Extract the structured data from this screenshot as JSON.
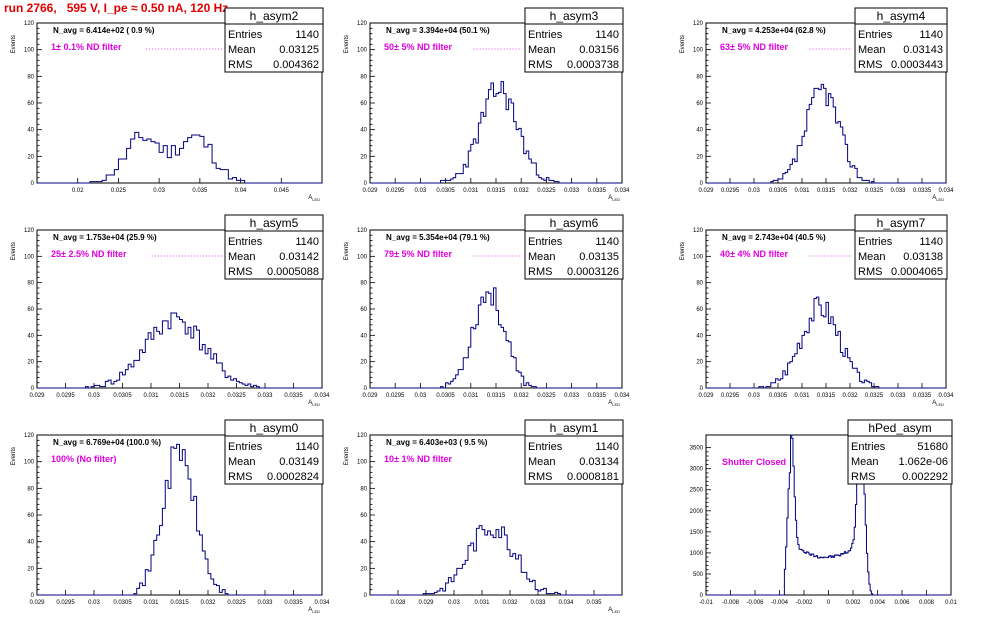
{
  "page": {
    "title": "run 2766,   595 V, I_pe ≈ 0.50 nA, 120 Hz",
    "stats_labels": {
      "entries": "Entries",
      "mean": "Mean",
      "rms": "RMS"
    },
    "colors": {
      "title": "#e00000",
      "filter_text": "#e000e0",
      "histogram_line": "#000080"
    }
  },
  "chart_data": [
    {
      "type": "bar",
      "name": "h_asym2",
      "stats": {
        "entries": "1140",
        "mean": "0.03125",
        "rms": "0.004362"
      },
      "n_avg": "N_avg = 6.414e+02 ( 0.9 %)",
      "filter": "1± 0.1% ND filter",
      "ylabel": "Events",
      "xlabel": "A_LED",
      "xlim": [
        0.015,
        0.05
      ],
      "ylim": [
        0,
        120
      ],
      "xticks": [
        0.02,
        0.025,
        0.03,
        0.035,
        0.04,
        0.045
      ],
      "xtick_labels": [
        "0.02",
        "0.025",
        "0.03",
        "0.035",
        "0.04",
        "0.045"
      ],
      "yticks": [
        0,
        20,
        40,
        60,
        80,
        100,
        120
      ],
      "dist": {
        "type": "bimodal",
        "mean": 0.03125,
        "rms": 0.004362,
        "peak": 36,
        "seed": 11
      },
      "bin_width": 0.0005
    },
    {
      "type": "bar",
      "name": "h_asym3",
      "stats": {
        "entries": "1140",
        "mean": "0.03156",
        "rms": "0.0003738"
      },
      "n_avg": "N_avg = 3.394e+04 (50.1 %)",
      "filter": "50± 5% ND filter",
      "ylabel": "Events",
      "xlabel": "A_LED",
      "xlim": [
        0.029,
        0.034
      ],
      "ylim": [
        0,
        120
      ],
      "xticks": [
        0.029,
        0.0295,
        0.03,
        0.0305,
        0.031,
        0.0315,
        0.032,
        0.0325,
        0.033,
        0.0335,
        0.034
      ],
      "xtick_labels": [
        "0.029",
        "0.0295",
        "0.03",
        "0.0305",
        "0.031",
        "0.0315",
        "0.032",
        "0.0325",
        "0.033",
        "0.0335",
        "0.034"
      ],
      "yticks": [
        0,
        20,
        40,
        60,
        80,
        100,
        120
      ],
      "dist": {
        "type": "gauss",
        "mean": 0.03156,
        "rms": 0.0003738,
        "peak": 70,
        "seed": 23
      },
      "bin_width": 5e-05
    },
    {
      "type": "bar",
      "name": "h_asym4",
      "stats": {
        "entries": "1140",
        "mean": "0.03143",
        "rms": "0.0003443"
      },
      "n_avg": "N_avg = 4.253e+04 (62.8 %)",
      "filter": "63± 5% ND filter",
      "ylabel": "Events",
      "xlabel": "A_LED",
      "xlim": [
        0.029,
        0.034
      ],
      "ylim": [
        0,
        120
      ],
      "xticks": [
        0.029,
        0.0295,
        0.03,
        0.0305,
        0.031,
        0.0315,
        0.032,
        0.0325,
        0.033,
        0.0335,
        0.034
      ],
      "xtick_labels": [
        "0.029",
        "0.0295",
        "0.03",
        "0.0305",
        "0.031",
        "0.0315",
        "0.032",
        "0.0325",
        "0.033",
        "0.0335",
        "0.034"
      ],
      "yticks": [
        0,
        20,
        40,
        60,
        80,
        100,
        120
      ],
      "dist": {
        "type": "gauss",
        "mean": 0.03143,
        "rms": 0.0003443,
        "peak": 70,
        "seed": 37
      },
      "bin_width": 5e-05
    },
    {
      "type": "bar",
      "name": "h_asym5",
      "stats": {
        "entries": "1140",
        "mean": "0.03142",
        "rms": "0.0005088"
      },
      "n_avg": "N_avg = 1.753e+04 (25.9 %)",
      "filter": "25± 2.5% ND filter",
      "ylabel": "Events",
      "xlabel": "A_LED",
      "xlim": [
        0.029,
        0.034
      ],
      "ylim": [
        0,
        120
      ],
      "xticks": [
        0.029,
        0.0295,
        0.03,
        0.0305,
        0.031,
        0.0315,
        0.032,
        0.0325,
        0.033,
        0.0335,
        0.034
      ],
      "xtick_labels": [
        "0.029",
        "0.0295",
        "0.03",
        "0.0305",
        "0.031",
        "0.0315",
        "0.032",
        "0.0325",
        "0.033",
        "0.0335",
        "0.034"
      ],
      "yticks": [
        0,
        20,
        40,
        60,
        80,
        100,
        120
      ],
      "dist": {
        "type": "gauss",
        "mean": 0.03142,
        "rms": 0.0005088,
        "peak": 53,
        "seed": 41
      },
      "bin_width": 5e-05
    },
    {
      "type": "bar",
      "name": "h_asym6",
      "stats": {
        "entries": "1140",
        "mean": "0.03135",
        "rms": "0.0003126"
      },
      "n_avg": "N_avg = 5.354e+04 (79.1 %)",
      "filter": "79± 5% ND filter",
      "ylabel": "Events",
      "xlabel": "A_LED",
      "xlim": [
        0.029,
        0.034
      ],
      "ylim": [
        0,
        120
      ],
      "xticks": [
        0.029,
        0.0295,
        0.03,
        0.0305,
        0.031,
        0.0315,
        0.032,
        0.0325,
        0.033,
        0.0335,
        0.034
      ],
      "xtick_labels": [
        "0.029",
        "0.0295",
        "0.03",
        "0.0305",
        "0.031",
        "0.0315",
        "0.032",
        "0.0325",
        "0.033",
        "0.0335",
        "0.034"
      ],
      "yticks": [
        0,
        20,
        40,
        60,
        80,
        100,
        120
      ],
      "dist": {
        "type": "gauss",
        "mean": 0.03135,
        "rms": 0.0003126,
        "peak": 73,
        "seed": 53
      },
      "bin_width": 5e-05
    },
    {
      "type": "bar",
      "name": "h_asym7",
      "stats": {
        "entries": "1140",
        "mean": "0.03138",
        "rms": "0.0004065"
      },
      "n_avg": "N_avg = 2.743e+04 (40.5 %)",
      "filter": "40± 4% ND filter",
      "ylabel": "Events",
      "xlabel": "A_LED",
      "xlim": [
        0.029,
        0.034
      ],
      "ylim": [
        0,
        120
      ],
      "xticks": [
        0.029,
        0.0295,
        0.03,
        0.0305,
        0.031,
        0.0315,
        0.032,
        0.0325,
        0.033,
        0.0335,
        0.034
      ],
      "xtick_labels": [
        "0.029",
        "0.0295",
        "0.03",
        "0.0305",
        "0.031",
        "0.0315",
        "0.032",
        "0.0325",
        "0.033",
        "0.0335",
        "0.034"
      ],
      "yticks": [
        0,
        20,
        40,
        60,
        80,
        100,
        120
      ],
      "dist": {
        "type": "gauss",
        "mean": 0.03138,
        "rms": 0.0004065,
        "peak": 62,
        "seed": 67
      },
      "bin_width": 5e-05
    },
    {
      "type": "bar",
      "name": "h_asym0",
      "stats": {
        "entries": "1140",
        "mean": "0.03149",
        "rms": "0.0002824"
      },
      "n_avg": "N_avg = 6.769e+04 (100.0 %)",
      "filter": "100% (No filter)",
      "ylabel": "Events",
      "xlabel": "A_LED",
      "xlim": [
        0.029,
        0.034
      ],
      "ylim": [
        0,
        120
      ],
      "xticks": [
        0.029,
        0.0295,
        0.03,
        0.0305,
        0.031,
        0.0315,
        0.032,
        0.0325,
        0.033,
        0.0335,
        0.034
      ],
      "xtick_labels": [
        "0.029",
        "0.0295",
        "0.03",
        "0.0305",
        "0.031",
        "0.0315",
        "0.032",
        "0.0325",
        "0.033",
        "0.0335",
        "0.034"
      ],
      "yticks": [
        0,
        20,
        40,
        60,
        80,
        100,
        120
      ],
      "dist": {
        "type": "gauss",
        "mean": 0.03149,
        "rms": 0.0002824,
        "peak": 108,
        "seed": 71
      },
      "bin_width": 5e-05
    },
    {
      "type": "bar",
      "name": "h_asym1",
      "stats": {
        "entries": "1140",
        "mean": "0.03134",
        "rms": "0.0008181"
      },
      "n_avg": "N_avg = 6.403e+03 ( 9.5 %)",
      "filter": "10± 1% ND filter",
      "ylabel": "Events",
      "xlabel": "A_LED",
      "xlim": [
        0.027,
        0.036
      ],
      "ylim": [
        0,
        120
      ],
      "xticks": [
        0.028,
        0.029,
        0.03,
        0.031,
        0.032,
        0.033,
        0.034,
        0.035
      ],
      "xtick_labels": [
        "0.028",
        "0.029",
        "0.03",
        "0.031",
        "0.032",
        "0.033",
        "0.034",
        "0.035"
      ],
      "yticks": [
        0,
        20,
        40,
        60,
        80,
        100,
        120
      ],
      "dist": {
        "type": "gauss",
        "mean": 0.03134,
        "rms": 0.0008181,
        "peak": 52,
        "seed": 83
      },
      "bin_width": 0.0001
    },
    {
      "type": "bar",
      "name": "hPed_asym",
      "stats": {
        "entries": "51680",
        "mean": "1.062e-06",
        "rms": "0.002292"
      },
      "n_avg": "",
      "filter": "Shutter Closed",
      "ylabel": "",
      "xlabel": "",
      "xlim": [
        -0.01,
        0.01
      ],
      "ylim": [
        0,
        3800
      ],
      "xticks": [
        -0.01,
        -0.008,
        -0.006,
        -0.004,
        -0.002,
        0,
        0.002,
        0.004,
        0.006,
        0.008,
        0.01
      ],
      "xtick_labels": [
        "-0.01",
        "-0.008",
        "-0.006",
        "-0.004",
        "-0.002",
        "0",
        "0.002",
        "0.004",
        "0.006",
        "0.008",
        "0.01"
      ],
      "yticks": [
        0,
        500,
        1000,
        1500,
        2000,
        2500,
        3000,
        3500
      ],
      "dist": {
        "type": "ped",
        "mean": 0.0,
        "rms": 0.002292,
        "peak": 3600,
        "seed": 97
      },
      "bin_width": 0.0001
    }
  ]
}
